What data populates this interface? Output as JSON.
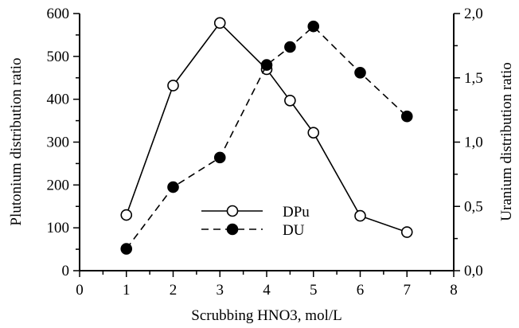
{
  "chart_data": {
    "type": "line",
    "xlabel": "Scrubbing HNO3, mol/L",
    "ylabel_left": "Plutonium distribution ratio",
    "ylabel_right": "Uranium distribution ratio",
    "xlim": [
      0,
      8
    ],
    "ylim_left": [
      0,
      600
    ],
    "ylim_right": [
      0,
      2.0
    ],
    "x_ticks": [
      "0",
      "1",
      "2",
      "3",
      "4",
      "5",
      "6",
      "7",
      "8"
    ],
    "y_left_ticks": [
      "0",
      "100",
      "200",
      "300",
      "400",
      "500",
      "600"
    ],
    "y_right_ticks": [
      "0,0",
      "0,5",
      "1,0",
      "1,5",
      "2,0"
    ],
    "grid": false,
    "legend_position": "center-left",
    "series": [
      {
        "name": "DPu",
        "axis": "left",
        "style": "solid",
        "marker": "open-circle",
        "x": [
          1,
          2,
          3,
          4,
          4.5,
          5,
          6,
          7
        ],
        "y": [
          130,
          432,
          578,
          470,
          397,
          322,
          128,
          90
        ]
      },
      {
        "name": "DU",
        "axis": "right",
        "style": "dashed",
        "marker": "filled-circle",
        "x": [
          1,
          2,
          3,
          4,
          4.5,
          5,
          6,
          7
        ],
        "y": [
          0.17,
          0.65,
          0.88,
          1.6,
          1.74,
          1.9,
          1.54,
          1.2
        ]
      }
    ]
  }
}
